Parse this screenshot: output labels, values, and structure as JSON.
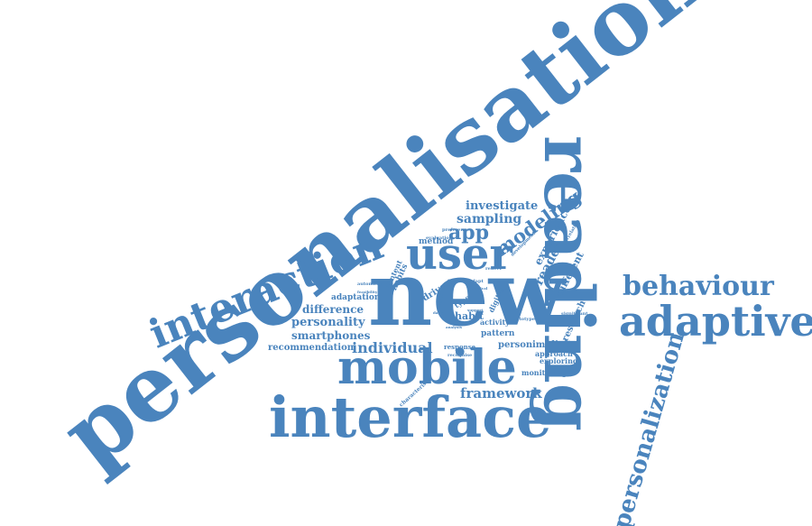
{
  "style": {
    "word_color": "#4a84bd",
    "background": "#ffffff"
  },
  "words": {
    "personalisation": "personalisation",
    "reading": "reading",
    "new": "new",
    "interface": "interface",
    "mobile": "mobile",
    "user": "user",
    "interaction": "interaction",
    "adaptive": "adaptive",
    "behaviour": "behaviour",
    "personalization": "personalization",
    "app": "app",
    "modeling": "modeling",
    "sampling": "sampling",
    "investigate": "investigate",
    "experience": "experience",
    "reader": "reader",
    "individual": "individual",
    "framework": "framework",
    "personality": "personality",
    "smartphones": "smartphones",
    "difference": "difference",
    "adaptation": "adaptation",
    "recommendation": "recommendation",
    "habit": "habit",
    "pattern": "pattern",
    "person": "person",
    "implicit": "implicit",
    "approach": "approach",
    "exploring": "exploring",
    "monitoring": "monitoring",
    "research": "research",
    "response": "response",
    "activity": "activity",
    "driven": "driven",
    "method": "method",
    "content": "content",
    "habits": "habits",
    "different": "different",
    "type": "type",
    "digital": "digital",
    "characteristic": "characteristic",
    "evaluation": "evaluation",
    "preference": "preference",
    "development": "development",
    "correlation": "correlation",
    "significant": "significant",
    "prototype": "prototype",
    "recognise": "recognise",
    "explore": "explore",
    "automatic": "automatic",
    "feasibility": "feasibility",
    "reflect": "reflect",
    "adapt": "adapt",
    "support": "support",
    "analysis": "analysis",
    "physical": "physical",
    "social": "social",
    "daily": "daily"
  }
}
